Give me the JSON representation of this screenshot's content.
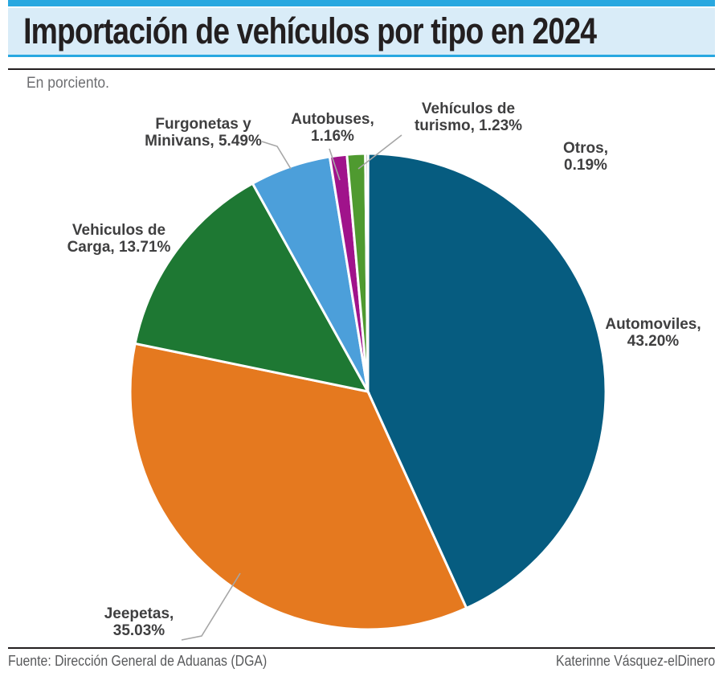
{
  "header": {
    "title": "Importación de vehículos por tipo en 2024",
    "subtitle": "En porciento."
  },
  "footer": {
    "source": "Fuente: Dirección General de Aduanas (DGA)",
    "credit": "Katerinne Vásquez-elDinero"
  },
  "colors": {
    "top_bar": "#29a8e0",
    "title_band": "#d9ecf8",
    "band_edge": "#29a8e0",
    "rule": "#231f20",
    "title_text": "#231f20",
    "subtitle_text": "#6d6e71",
    "label_text": "#3f3f40",
    "footer_text": "#58595b",
    "leader": "#a6a6a6"
  },
  "chart_data": {
    "type": "pie",
    "title": "Importación de vehículos por tipo en 2024",
    "unit": "percent",
    "direction": "clockwise",
    "start_angle_deg": 0,
    "slices": [
      {
        "name": "Automoviles",
        "value": 43.2,
        "color": "#065c80",
        "label": "Automoviles,\n43.20%"
      },
      {
        "name": "Jeepetas",
        "value": 35.03,
        "color": "#e5791f",
        "label": "Jeepetas,\n35.03%"
      },
      {
        "name": "Vehiculos de Carga",
        "value": 13.71,
        "color": "#1e7833",
        "label": "Vehiculos de\nCarga, 13.71%"
      },
      {
        "name": "Furgonetas y Minivans",
        "value": 5.49,
        "color": "#4c9fda",
        "label": "Furgonetas y\nMinivans, 5.49%"
      },
      {
        "name": "Autobuses",
        "value": 1.16,
        "color": "#a0138b",
        "label": "Autobuses,\n1.16%"
      },
      {
        "name": "Vehículos de turismo",
        "value": 1.23,
        "color": "#4f9a30",
        "label": "Vehículos de\nturismo, 1.23%"
      },
      {
        "name": "Otros",
        "value": 0.19,
        "color": "#8c8c8c",
        "label": "Otros,\n0.19%"
      }
    ]
  }
}
